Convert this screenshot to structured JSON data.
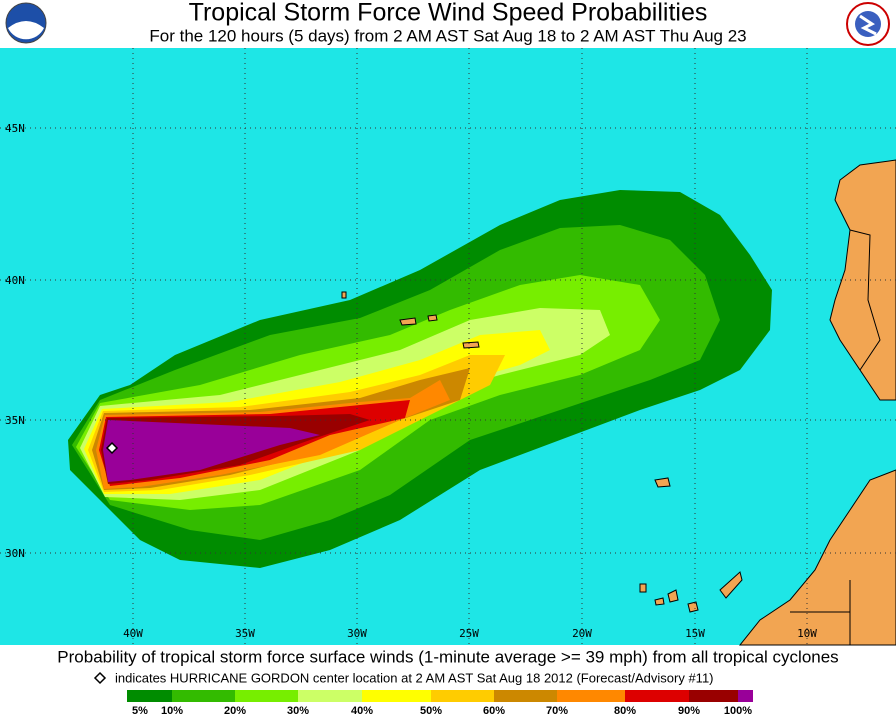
{
  "header": {
    "title": "Tropical Storm Force Wind Speed Probabilities",
    "subtitle": "For the 120 hours (5 days) from 2 AM AST Sat Aug 18 to 2 AM AST Thu Aug 23"
  },
  "map": {
    "lat_labels": [
      "45N",
      "40N",
      "35N",
      "30N"
    ],
    "lon_labels": [
      "40W",
      "35W",
      "30W",
      "25W",
      "20W",
      "15W",
      "10W"
    ]
  },
  "caption": "Probability of tropical storm force surface winds (1-minute average >= 39 mph) from all tropical cyclones",
  "note": "indicates HURRICANE GORDON center location at 2 AM AST Sat Aug 18 2012 (Forecast/Advisory #11)",
  "legend": {
    "labels": [
      "5%",
      "10%",
      "20%",
      "30%",
      "40%",
      "50%",
      "60%",
      "70%",
      "80%",
      "90%",
      "100%"
    ],
    "colors": [
      "#008c00",
      "#33bb00",
      "#77ee00",
      "#ccff66",
      "#ffff00",
      "#ffcc00",
      "#cc8800",
      "#ff8800",
      "#dd0000",
      "#990000",
      "#990099"
    ]
  }
}
